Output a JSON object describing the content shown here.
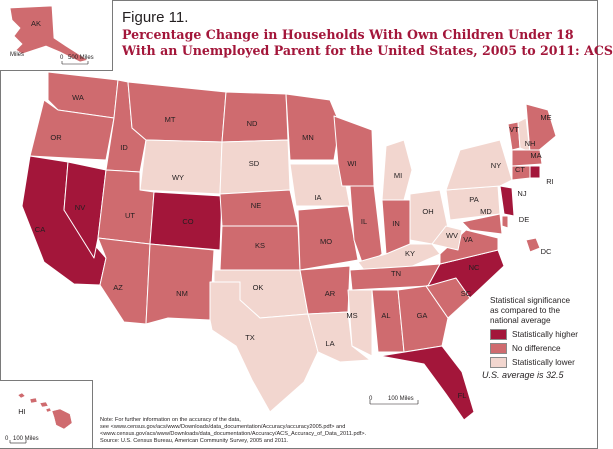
{
  "figure": {
    "label": "Figure 11.",
    "title_line1": "Percentage Change in Households With Own Children Under 18",
    "title_line2": "With an Unemployed Parent for the United States, 2005 to 2011: ACS"
  },
  "colors": {
    "higher": "#a3163a",
    "no_difference": "#cf6b6f",
    "lower": "#f2d6cf",
    "border": "#ffffff",
    "frame": "#7a7a7a"
  },
  "legend": {
    "title_line1": "Statistical significance",
    "title_line2": "as compared to the",
    "title_line3": "national average",
    "items": [
      {
        "label": "Statistically higher",
        "color": "#a3163a"
      },
      {
        "label": "No difference",
        "color": "#cf6b6f"
      },
      {
        "label": "Statistically lower",
        "color": "#f2d6cf"
      }
    ]
  },
  "average_note": "U.S. average is 32.5",
  "insets": {
    "alaska": {
      "label": "AK",
      "scale_zero": "0",
      "scale_label": "500 Miles",
      "side_label": "Miles"
    },
    "hawaii": {
      "label": "HI",
      "scale_zero": "0",
      "scale_label": "100 Miles"
    }
  },
  "main_scale": {
    "zero": "0",
    "label": "100 Miles"
  },
  "notes": {
    "line1": "Note: For further information on the accuracy of the data,",
    "line2": "see <www.census.gov/acs/www/Downloads/data_documentation/Accuracy/accuracy2005.pdf> and",
    "line3": "<www.census.gov/acs/www/Downloads/data_documentation/Accuracy/ACS_Accuracy_of_Data_2011.pdf>.",
    "line4": "Source: U.S. Census Bureau, American Community Survey, 2005 and 2011."
  },
  "states": [
    {
      "abbr": "WA",
      "significance": "no_difference"
    },
    {
      "abbr": "OR",
      "significance": "no_difference"
    },
    {
      "abbr": "CA",
      "significance": "higher"
    },
    {
      "abbr": "NV",
      "significance": "higher"
    },
    {
      "abbr": "ID",
      "significance": "no_difference"
    },
    {
      "abbr": "MT",
      "significance": "no_difference"
    },
    {
      "abbr": "WY",
      "significance": "lower"
    },
    {
      "abbr": "UT",
      "significance": "no_difference"
    },
    {
      "abbr": "AZ",
      "significance": "no_difference"
    },
    {
      "abbr": "CO",
      "significance": "higher"
    },
    {
      "abbr": "NM",
      "significance": "no_difference"
    },
    {
      "abbr": "ND",
      "significance": "no_difference"
    },
    {
      "abbr": "SD",
      "significance": "lower"
    },
    {
      "abbr": "NE",
      "significance": "no_difference"
    },
    {
      "abbr": "KS",
      "significance": "no_difference"
    },
    {
      "abbr": "OK",
      "significance": "lower"
    },
    {
      "abbr": "TX",
      "significance": "lower"
    },
    {
      "abbr": "MN",
      "significance": "no_difference"
    },
    {
      "abbr": "IA",
      "significance": "lower"
    },
    {
      "abbr": "MO",
      "significance": "no_difference"
    },
    {
      "abbr": "AR",
      "significance": "no_difference"
    },
    {
      "abbr": "LA",
      "significance": "lower"
    },
    {
      "abbr": "WI",
      "significance": "no_difference"
    },
    {
      "abbr": "IL",
      "significance": "no_difference"
    },
    {
      "abbr": "MI",
      "significance": "lower"
    },
    {
      "abbr": "IN",
      "significance": "no_difference"
    },
    {
      "abbr": "OH",
      "significance": "lower"
    },
    {
      "abbr": "KY",
      "significance": "lower"
    },
    {
      "abbr": "TN",
      "significance": "no_difference"
    },
    {
      "abbr": "MS",
      "significance": "lower"
    },
    {
      "abbr": "AL",
      "significance": "no_difference"
    },
    {
      "abbr": "GA",
      "significance": "no_difference"
    },
    {
      "abbr": "FL",
      "significance": "higher"
    },
    {
      "abbr": "SC",
      "significance": "no_difference"
    },
    {
      "abbr": "NC",
      "significance": "higher"
    },
    {
      "abbr": "VA",
      "significance": "no_difference"
    },
    {
      "abbr": "WV",
      "significance": "lower"
    },
    {
      "abbr": "PA",
      "significance": "lower"
    },
    {
      "abbr": "NY",
      "significance": "lower"
    },
    {
      "abbr": "NJ",
      "significance": "higher"
    },
    {
      "abbr": "DE",
      "significance": "no_difference"
    },
    {
      "abbr": "MD",
      "significance": "no_difference"
    },
    {
      "abbr": "DC",
      "significance": "no_difference"
    },
    {
      "abbr": "VT",
      "significance": "no_difference"
    },
    {
      "abbr": "NH",
      "significance": "lower"
    },
    {
      "abbr": "ME",
      "significance": "no_difference"
    },
    {
      "abbr": "MA",
      "significance": "no_difference"
    },
    {
      "abbr": "CT",
      "significance": "no_difference"
    },
    {
      "abbr": "RI",
      "significance": "higher"
    },
    {
      "abbr": "AK",
      "significance": "no_difference"
    },
    {
      "abbr": "HI",
      "significance": "no_difference"
    }
  ]
}
